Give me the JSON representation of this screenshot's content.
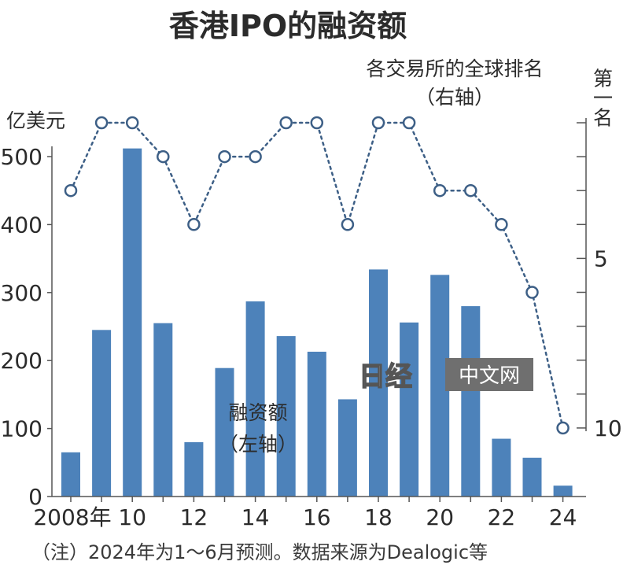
{
  "chart_data": {
    "type": "bar",
    "title": "香港IPO的融资额",
    "left_axis": {
      "unit": "亿美元",
      "ylim": [
        0,
        500
      ],
      "ticks": [
        0,
        100,
        200,
        300,
        400,
        500
      ],
      "tick_labels": [
        "0",
        "100",
        "200",
        "300",
        "400",
        "500"
      ]
    },
    "right_axis": {
      "label": "各交易所的全球排名",
      "sublabel": "（右轴）",
      "top_label": "第一名",
      "ticks": [
        1,
        2,
        3,
        4,
        5,
        6,
        7,
        8,
        9,
        10
      ],
      "tick_labels": [
        "第一名",
        "",
        "",
        "",
        "5",
        "",
        "",
        "",
        "",
        "10"
      ],
      "reversed": true
    },
    "x": [
      2008,
      2009,
      2010,
      2011,
      2012,
      2013,
      2014,
      2015,
      2016,
      2017,
      2018,
      2019,
      2020,
      2021,
      2022,
      2023,
      2024
    ],
    "x_tick_labels": [
      "2008年",
      "10",
      "12",
      "14",
      "16",
      "18",
      "20",
      "22",
      "24"
    ],
    "series": [
      {
        "name": "融资额（左轴）",
        "kind": "bar",
        "axis": "left",
        "color": "#4d82ba",
        "values": [
          65,
          245,
          512,
          255,
          80,
          189,
          287,
          236,
          213,
          143,
          334,
          256,
          326,
          280,
          85,
          57,
          16
        ]
      },
      {
        "name": "各交易所的全球排名（右轴）",
        "kind": "line",
        "axis": "right",
        "color": "#3d5f86",
        "values": [
          3,
          1,
          1,
          2,
          4,
          2,
          2,
          1,
          1,
          4,
          1,
          1,
          3,
          3,
          4,
          6,
          10
        ]
      }
    ],
    "bar_label": "融资额",
    "bar_sublabel": "（左轴）",
    "grid": false,
    "note": "（注）2024年为1～6月预测。数据来源为Dealogic等"
  },
  "watermark": {
    "logo": "日经",
    "text": "中文网"
  }
}
